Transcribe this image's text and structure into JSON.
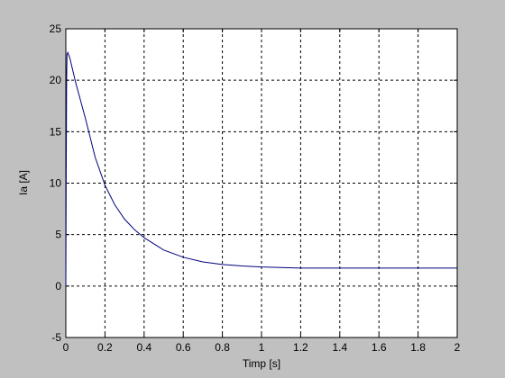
{
  "chart_data": {
    "type": "line",
    "xlabel": "Timp [s]",
    "ylabel": "Ia [A]",
    "x": [
      0,
      0.002,
      0.004,
      0.006,
      0.01,
      0.02,
      0.05,
      0.1,
      0.15,
      0.2,
      0.25,
      0.3,
      0.35,
      0.4,
      0.5,
      0.6,
      0.7,
      0.8,
      0.9,
      1.0,
      1.1,
      1.2,
      1.4,
      1.6,
      1.8,
      2.0
    ],
    "series": [
      {
        "color": "#00007f",
        "values": [
          0,
          11.3,
          20,
          22.5,
          22.7,
          22.2,
          19.8,
          16.3,
          12.5,
          9.8,
          7.9,
          6.5,
          5.5,
          4.7,
          3.5,
          2.8,
          2.35,
          2.1,
          1.95,
          1.85,
          1.8,
          1.75,
          1.75,
          1.75,
          1.75,
          1.75
        ]
      }
    ],
    "xlim": [
      0,
      2
    ],
    "xticks": [
      0,
      0.2,
      0.4,
      0.6,
      0.8,
      1,
      1.2,
      1.4,
      1.6,
      1.8,
      2
    ],
    "ylim": [
      -5,
      25
    ],
    "yticks": [
      -5,
      0,
      5,
      10,
      15,
      20,
      25
    ],
    "grid": true
  }
}
